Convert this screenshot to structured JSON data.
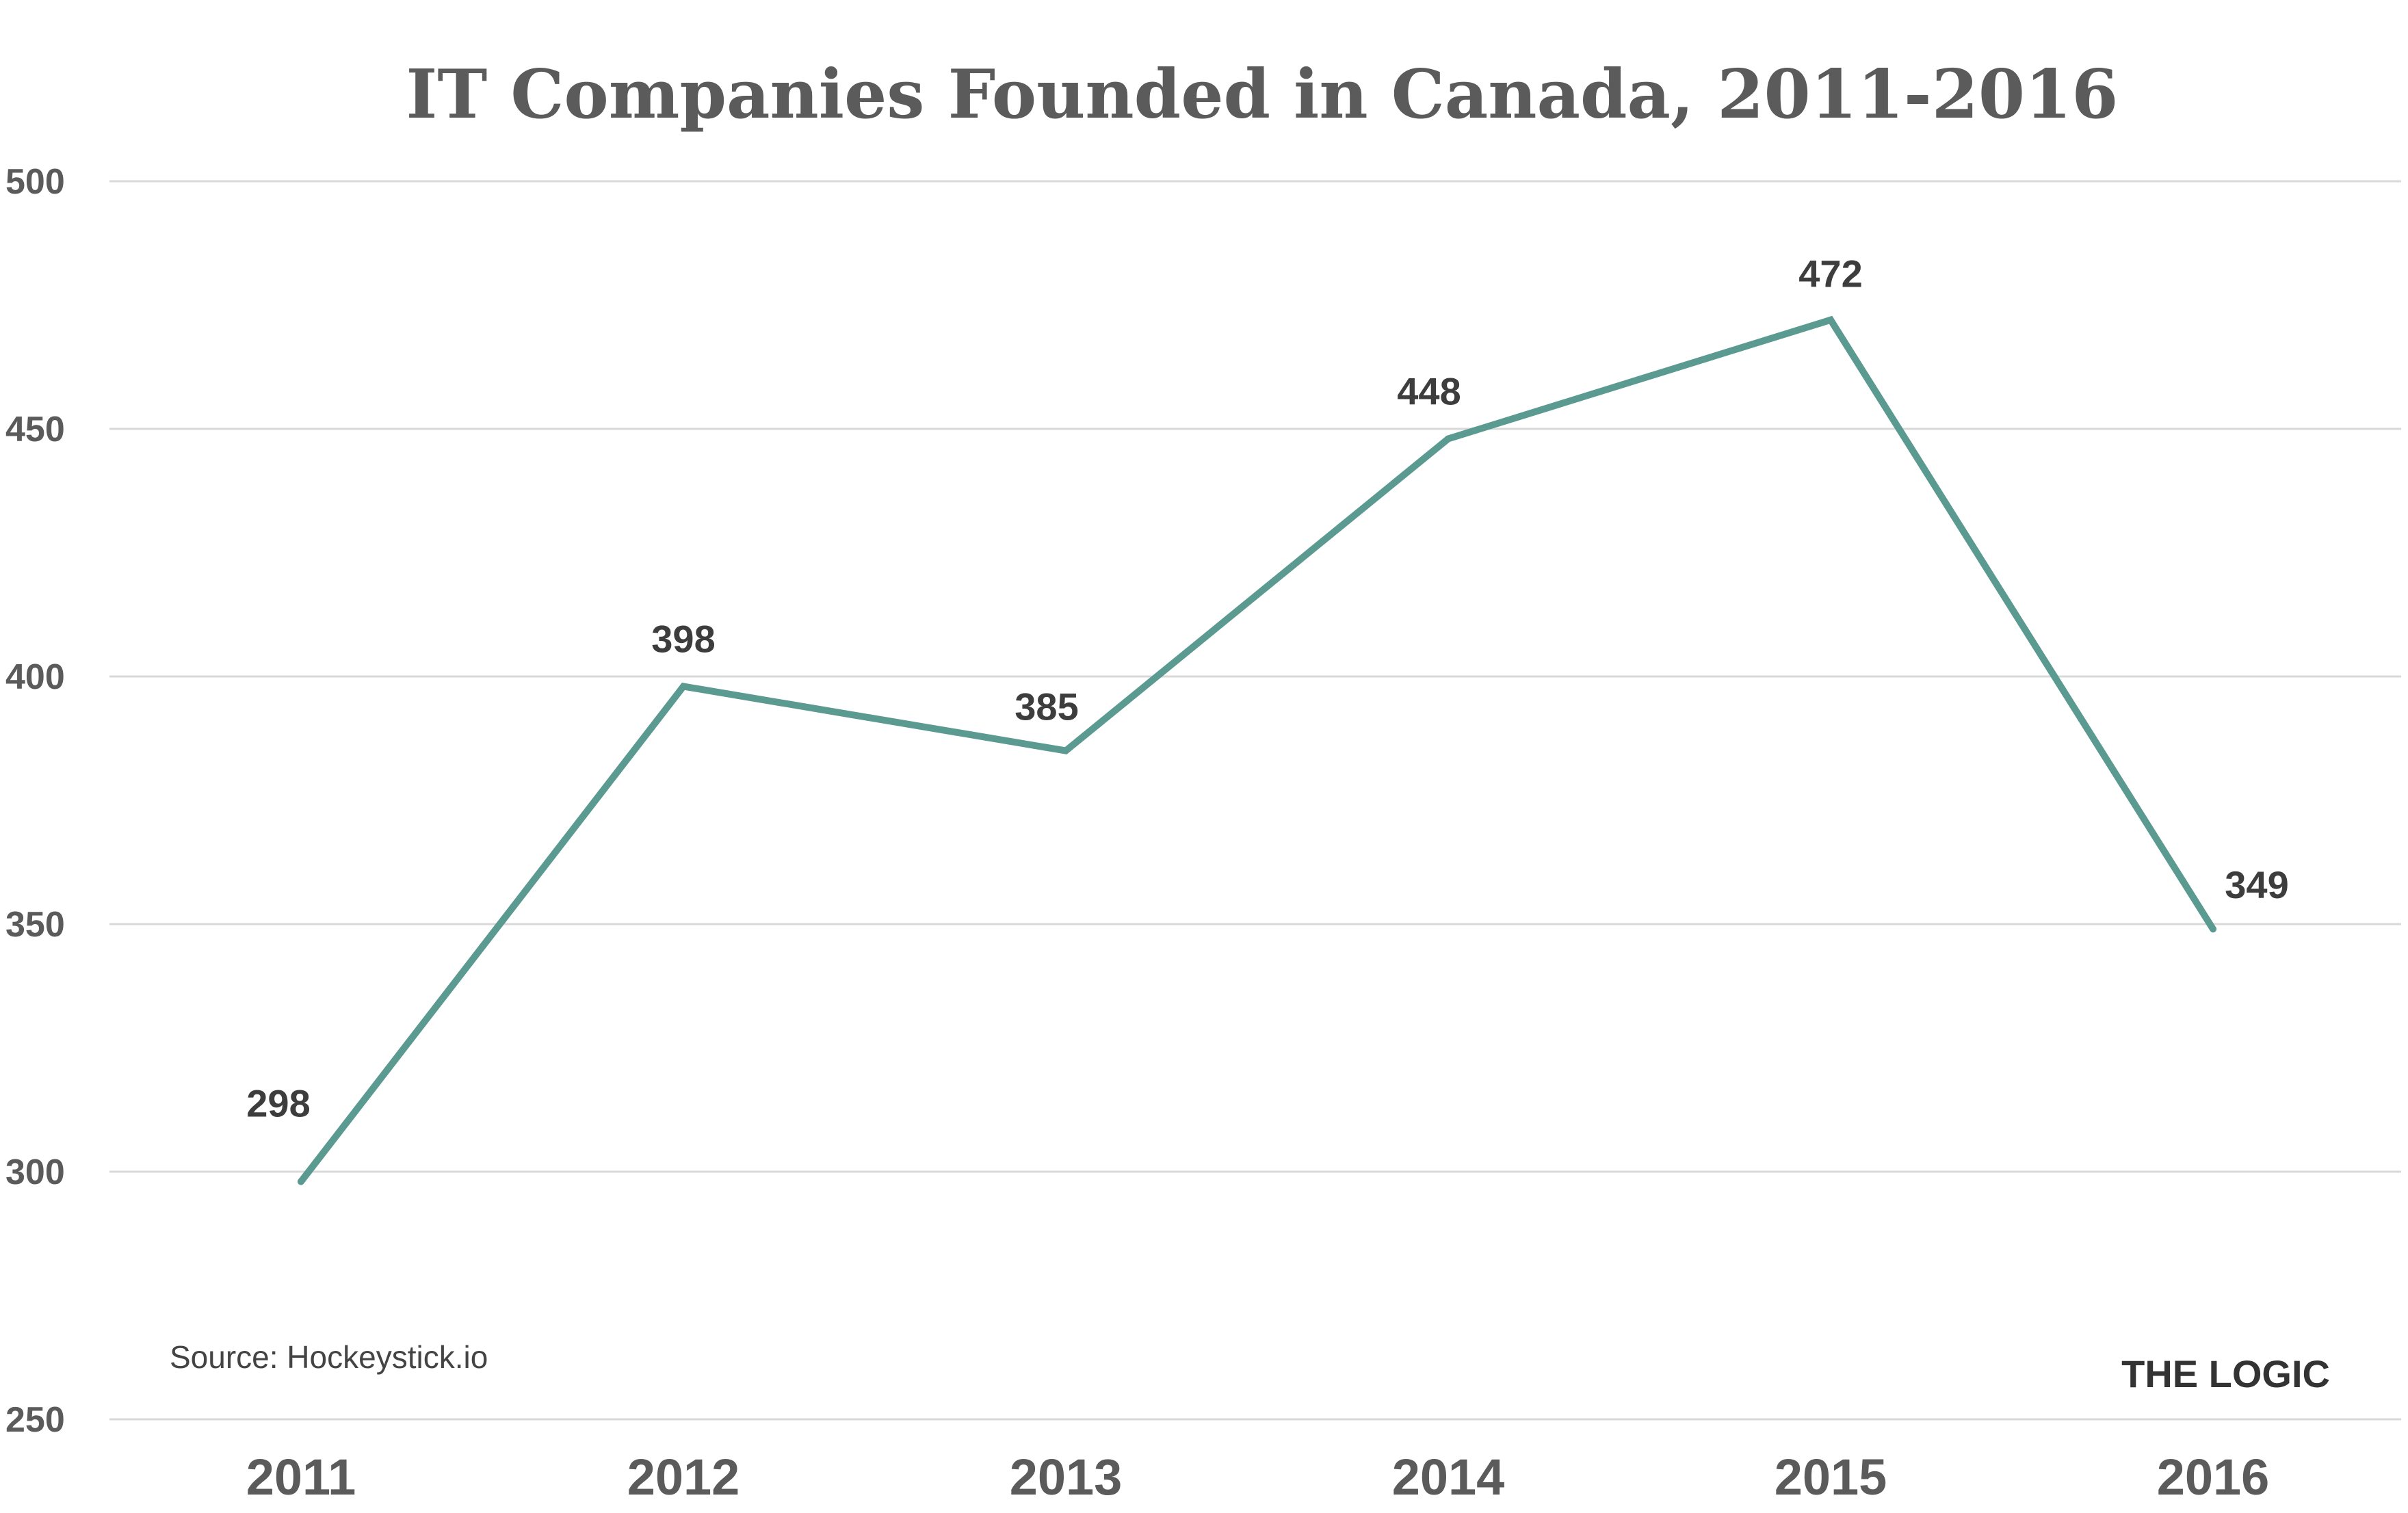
{
  "chart_data": {
    "type": "line",
    "title": "IT Companies Founded in Canada, 2011-2016",
    "categories": [
      "2011",
      "2012",
      "2013",
      "2014",
      "2015",
      "2016"
    ],
    "values": [
      298,
      398,
      385,
      448,
      472,
      349
    ],
    "data_labels": [
      "298",
      "398",
      "385",
      "448",
      "472",
      "349"
    ],
    "xlabel": "",
    "ylabel": "",
    "ylim": [
      250,
      500
    ],
    "yticks": [
      250,
      300,
      350,
      400,
      450,
      500
    ],
    "ytick_labels": [
      "250",
      "300",
      "350",
      "400",
      "450",
      "500"
    ],
    "grid": "horizontal",
    "legend": "none",
    "line_color": "#5a9a91",
    "gridline_color": "#d9d9d9",
    "text_color": "#5b5b5b",
    "annotations": {
      "source": "Source: Hockeystick.io",
      "brand": "THE LOGIC"
    }
  }
}
